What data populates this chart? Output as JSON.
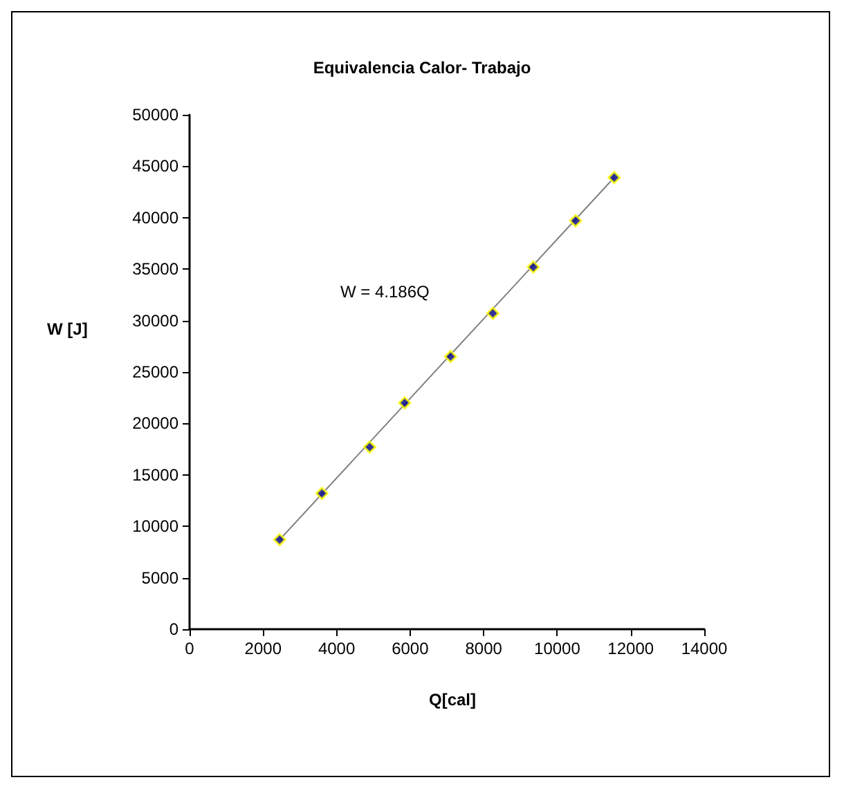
{
  "chart_data": {
    "type": "scatter",
    "title": "Equivalencia Calor- Trabajo",
    "xlabel": "Q[cal]",
    "ylabel": "W [J]",
    "series": [
      {
        "color": "#000080",
        "marker": "diamond",
        "x": [
          2450,
          3600,
          4900,
          5850,
          7100,
          8250,
          9350,
          10500,
          11550
        ],
        "values": [
          8700,
          13200,
          17700,
          22000,
          26500,
          30700,
          35200,
          39700,
          43900
        ]
      },
      {
        "type": "line",
        "color": "#808080",
        "marker": "none",
        "x": [
          2450,
          11550
        ],
        "values": [
          8700,
          43900
        ]
      }
    ],
    "annotations": [
      "W = 4.186Q"
    ],
    "xlim": [
      0,
      14000
    ],
    "xticks": [
      0,
      2000,
      4000,
      6000,
      8000,
      10000,
      12000,
      14000
    ],
    "ylim": [
      0,
      50000
    ],
    "yticks": [
      0,
      5000,
      10000,
      15000,
      20000,
      25000,
      30000,
      35000,
      40000,
      45000,
      50000
    ],
    "grid": false
  }
}
